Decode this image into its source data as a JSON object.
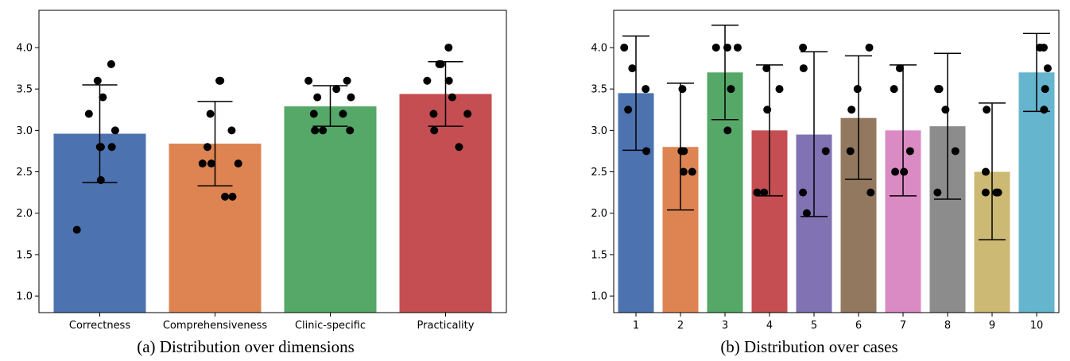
{
  "chart_data": [
    {
      "type": "bar",
      "caption": "(a) Distribution over dimensions",
      "categories": [
        "Correctness",
        "Comprehensiveness",
        "Clinic-specific",
        "Practicality"
      ],
      "values": [
        2.96,
        2.84,
        3.29,
        3.44
      ],
      "error_low": [
        2.37,
        2.33,
        3.05,
        3.05
      ],
      "error_high": [
        3.55,
        3.35,
        3.54,
        3.83
      ],
      "points": [
        [
          3.8,
          3.4,
          3.6,
          3.2,
          3.0,
          2.8,
          2.8,
          2.8,
          2.4,
          1.8
        ],
        [
          3.6,
          3.6,
          3.2,
          3.0,
          2.8,
          2.6,
          2.6,
          2.6,
          2.2,
          2.2
        ],
        [
          3.6,
          3.6,
          3.5,
          3.4,
          3.4,
          3.2,
          3.2,
          3.0,
          3.0,
          3.0
        ],
        [
          4.0,
          3.8,
          3.8,
          3.6,
          3.6,
          3.4,
          3.2,
          3.2,
          3.0,
          2.8
        ]
      ],
      "colors": [
        "#4c72b0",
        "#dd8452",
        "#55a868",
        "#c44e52"
      ],
      "yticks": [
        1.0,
        1.5,
        2.0,
        2.5,
        3.0,
        3.5,
        4.0
      ],
      "ylim": [
        0.8,
        4.45
      ],
      "grid": false,
      "xlabel": "",
      "ylabel": ""
    },
    {
      "type": "bar",
      "caption": "(b) Distribution over cases",
      "categories": [
        "1",
        "2",
        "3",
        "4",
        "5",
        "6",
        "7",
        "8",
        "9",
        "10"
      ],
      "values": [
        3.45,
        2.8,
        3.7,
        3.0,
        2.95,
        3.15,
        3.0,
        3.05,
        2.5,
        3.7
      ],
      "error_low": [
        2.76,
        2.04,
        3.13,
        2.21,
        1.96,
        2.41,
        2.21,
        2.17,
        1.68,
        3.23
      ],
      "error_high": [
        4.14,
        3.57,
        4.27,
        3.79,
        3.95,
        3.9,
        3.79,
        3.93,
        3.33,
        4.17
      ],
      "points": [
        [
          4.0,
          3.75,
          3.5,
          3.25,
          2.75
        ],
        [
          3.5,
          2.75,
          2.75,
          2.5,
          2.5
        ],
        [
          4.0,
          4.0,
          4.0,
          3.5,
          3.0
        ],
        [
          3.75,
          3.5,
          3.25,
          2.25,
          2.25
        ],
        [
          4.0,
          3.75,
          2.75,
          2.25,
          2.0
        ],
        [
          4.0,
          3.5,
          3.25,
          2.75,
          2.25
        ],
        [
          3.75,
          3.5,
          2.75,
          2.5,
          2.5
        ],
        [
          3.5,
          3.5,
          3.25,
          2.75,
          2.25
        ],
        [
          3.25,
          2.5,
          2.25,
          2.25,
          2.25
        ],
        [
          4.0,
          4.0,
          3.75,
          3.5,
          3.25
        ]
      ],
      "colors": [
        "#4c72b0",
        "#dd8452",
        "#55a868",
        "#c44e52",
        "#8172b3",
        "#937860",
        "#da8bc3",
        "#8c8c8c",
        "#ccb974",
        "#64b5cd"
      ],
      "yticks": [
        1.0,
        1.5,
        2.0,
        2.5,
        3.0,
        3.5,
        4.0
      ],
      "ylim": [
        0.8,
        4.45
      ],
      "grid": false,
      "xlabel": "",
      "ylabel": ""
    }
  ]
}
